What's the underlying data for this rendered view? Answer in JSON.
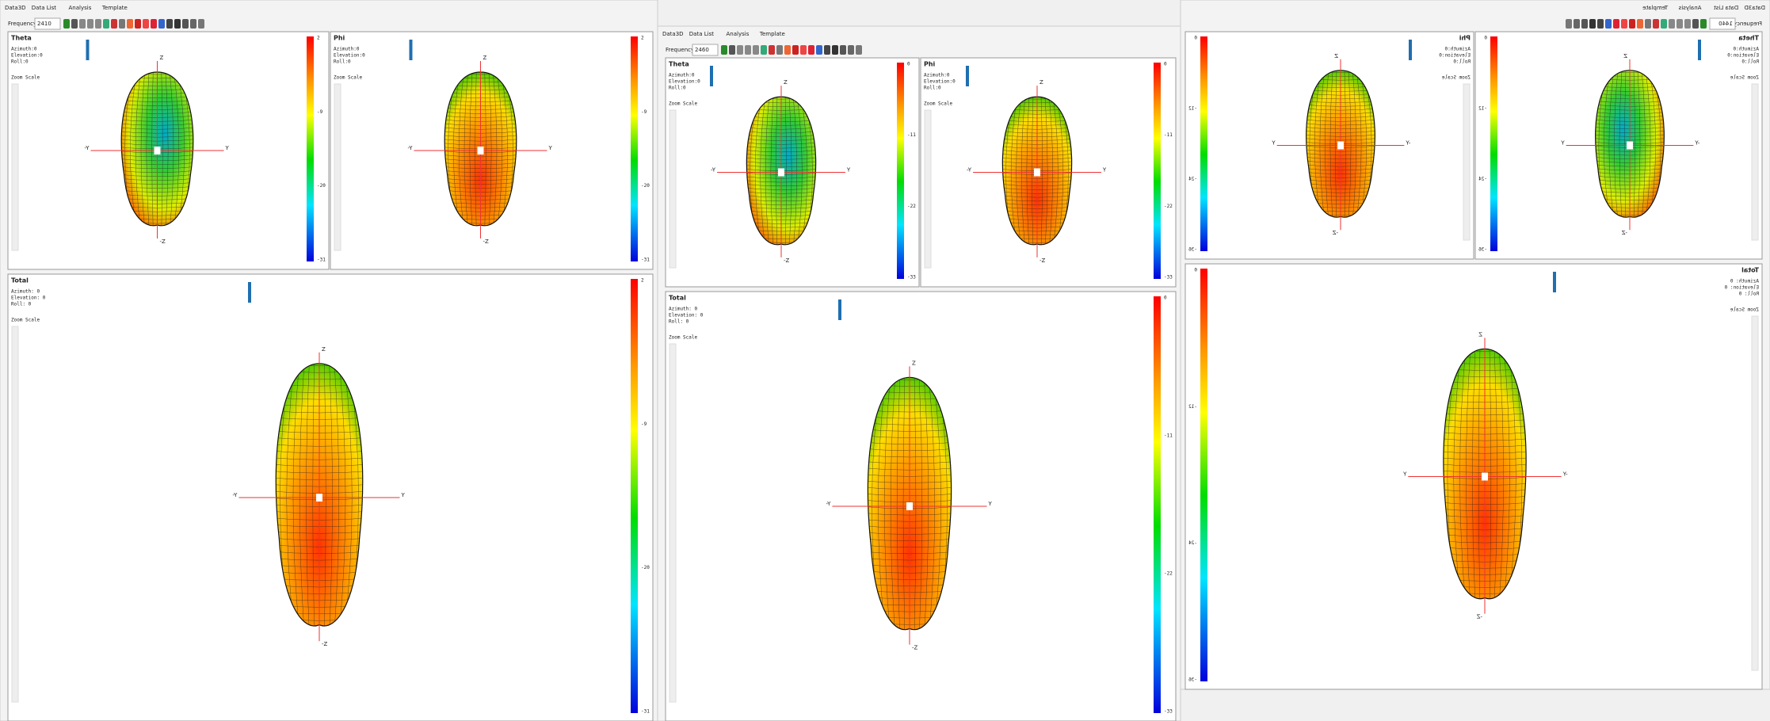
{
  "windows": [
    {
      "tabs": [
        "Data3D",
        "Data List",
        "Analysis",
        "Template"
      ],
      "frequency_label": "Frequency:",
      "frequency": "2410",
      "panels": [
        {
          "title": "Theta",
          "info": [
            "Azimuth:0",
            "Elevation:0",
            "Roll:0"
          ],
          "zoom": "Zoom Scale",
          "axes": [
            "Z",
            "-Y",
            "Y",
            "-Z"
          ],
          "scale": [
            2,
            -9,
            -20,
            -31
          ]
        },
        {
          "title": "Phi",
          "info": [
            "Azimuth:0",
            "Elevation:0",
            "Roll:0"
          ],
          "zoom": "Zoom Scale",
          "axes": [
            "Z",
            "-Y",
            "Y",
            "-Z"
          ],
          "scale": [
            2,
            -9,
            -20,
            -31
          ]
        },
        {
          "title": "Total",
          "info": [
            "Azimuth: 0",
            "Elevation: 0",
            "Roll: 0"
          ],
          "zoom": "Zoom Scale",
          "axes": [
            "Z",
            "-Y",
            "Y",
            "-Z"
          ],
          "scale": [
            2,
            -9,
            -20,
            -31
          ]
        }
      ]
    },
    {
      "tabs": [
        "Data3D",
        "Data List",
        "Analysis",
        "Template"
      ],
      "frequency_label": "Frequency:",
      "frequency": "2460",
      "panels": [
        {
          "title": "Theta",
          "info": [
            "Azimuth:0",
            "Elevation:0",
            "Roll:0"
          ],
          "zoom": "Zoom Scale",
          "axes": [
            "Z",
            "-Y",
            "Y",
            "-Z"
          ],
          "scale": [
            0,
            -11,
            -22,
            -33
          ]
        },
        {
          "title": "Phi",
          "info": [
            "Azimuth:0",
            "Elevation:0",
            "Roll:0"
          ],
          "zoom": "Zoom Scale",
          "axes": [
            "Z",
            "-Y",
            "Y",
            "-Z"
          ],
          "scale": [
            0,
            -11,
            -22,
            -33
          ]
        },
        {
          "title": "Total",
          "info": [
            "Azimuth: 0",
            "Elevation: 0",
            "Roll: 0"
          ],
          "zoom": "Zoom Scale",
          "axes": [
            "Z",
            "-Y",
            "Y",
            "-Z"
          ],
          "scale": [
            0,
            -11,
            -22,
            -33
          ]
        }
      ]
    },
    {
      "tabs": [
        "Data3D",
        "Data List",
        "Analysis",
        "Template"
      ],
      "frequency_label": "Frequency:",
      "frequency": "1440",
      "panels": [
        {
          "title": "Theta",
          "info": [
            "Azimuth:0",
            "Elevation:0",
            "Roll:0"
          ],
          "zoom": "Zoom Scale",
          "axes": [
            "Z",
            "-Y",
            "Y",
            "-Z"
          ],
          "scale": [
            0,
            -12,
            -24,
            -36
          ]
        },
        {
          "title": "Phi",
          "info": [
            "Azimuth:0",
            "Elevation:0",
            "Roll:0"
          ],
          "zoom": "Zoom Scale",
          "axes": [
            "Z",
            "-Y",
            "Y",
            "-Z"
          ],
          "scale": [
            0,
            -12,
            -24,
            -36
          ]
        },
        {
          "title": "Total",
          "info": [
            "Azimuth: 0",
            "Elevation: 0",
            "Roll: 0"
          ],
          "zoom": "Zoom Scale",
          "axes": [
            "Z",
            "-Y",
            "Y",
            "-Z"
          ],
          "scale": [
            0,
            -12,
            -24,
            -36
          ]
        }
      ]
    }
  ]
}
